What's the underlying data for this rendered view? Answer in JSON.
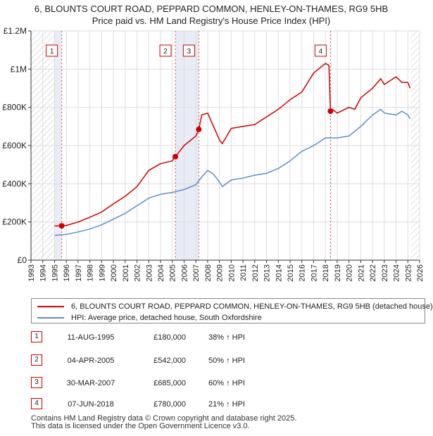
{
  "title_line1": "6, BLOUNTS COURT ROAD, PEPPARD COMMON, HENLEY-ON-THAMES, RG9 5HB",
  "title_line2": "Price paid vs. HM Land Registry's House Price Index (HPI)",
  "colors": {
    "property": "#cc0000",
    "hpi": "#5b8fc7",
    "shade": "#e8ecf6",
    "grid": "#dddddd",
    "hatch": "#bbbbbb"
  },
  "legend": {
    "property_label": "6, BLOUNTS COURT ROAD, PEPPARD COMMON, HENLEY-ON-THAMES, RG9 5HB (detached house)",
    "hpi_label": "HPI: Average price, detached house, South Oxfordshire"
  },
  "transactions": [
    {
      "num": "1",
      "date": "11-AUG-1995",
      "price": "£180,000",
      "hpi": "38% ↑ HPI"
    },
    {
      "num": "2",
      "date": "04-APR-2005",
      "price": "£542,000",
      "hpi": "50% ↑ HPI"
    },
    {
      "num": "3",
      "date": "30-MAR-2007",
      "price": "£685,000",
      "hpi": "60% ↑ HPI"
    },
    {
      "num": "4",
      "date": "07-JUN-2018",
      "price": "£780,000",
      "hpi": "21% ↑ HPI"
    }
  ],
  "footer": {
    "line1": "Contains HM Land Registry data © Crown copyright and database right 2025.",
    "line2": "This data is licensed under the Open Government Licence v3.0."
  },
  "chart_data": {
    "type": "line",
    "xlim": [
      1993,
      2026
    ],
    "ylim": [
      0,
      1200000
    ],
    "y_ticks": [
      0,
      200000,
      400000,
      600000,
      800000,
      1000000,
      1200000
    ],
    "y_tick_labels": [
      "£0",
      "£200K",
      "£400K",
      "£600K",
      "£800K",
      "£1M",
      "£1.2M"
    ],
    "x_ticks": [
      1993,
      1994,
      1995,
      1996,
      1997,
      1998,
      1999,
      2000,
      2001,
      2002,
      2003,
      2004,
      2005,
      2006,
      2007,
      2008,
      2009,
      2010,
      2011,
      2012,
      2013,
      2014,
      2015,
      2016,
      2017,
      2018,
      2019,
      2020,
      2021,
      2022,
      2023,
      2024,
      2025,
      2026
    ],
    "hatched_ranges": [
      [
        1993,
        1995.0
      ],
      [
        2025.25,
        2026
      ]
    ],
    "shaded_ranges": [
      [
        1995.0,
        1995.61
      ],
      [
        2005.26,
        2007.25
      ],
      [
        2018.43,
        2018.5
      ]
    ],
    "series": [
      {
        "name": "6, BLOUNTS COURT ROAD, PEPPARD COMMON, HENLEY-ON-THAMES, RG9 5HB (detached house)",
        "x": [
          1995.0,
          1995.61,
          1996.0,
          1997.0,
          1998.0,
          1999.0,
          2000.0,
          2001.0,
          2002.0,
          2003.0,
          2004.0,
          2005.0,
          2005.26,
          2006.0,
          2007.0,
          2007.25,
          2007.5,
          2008.0,
          2008.5,
          2009.0,
          2009.25,
          2010.0,
          2011.0,
          2012.0,
          2013.0,
          2014.0,
          2015.0,
          2016.0,
          2017.0,
          2018.0,
          2018.3,
          2018.43,
          2018.6,
          2019.0,
          2020.0,
          2020.5,
          2021.0,
          2022.0,
          2022.7,
          2023.0,
          2024.0,
          2024.5,
          2025.0,
          2025.2
        ],
        "y": [
          180000,
          180000,
          182000,
          200000,
          225000,
          252000,
          295000,
          335000,
          385000,
          470000,
          505000,
          520000,
          542000,
          600000,
          650000,
          685000,
          760000,
          770000,
          700000,
          630000,
          610000,
          690000,
          700000,
          710000,
          750000,
          790000,
          840000,
          880000,
          980000,
          1030000,
          1020000,
          780000,
          790000,
          770000,
          800000,
          790000,
          850000,
          900000,
          950000,
          920000,
          960000,
          930000,
          930000,
          900000
        ]
      },
      {
        "name": "HPI: Average price, detached house, South Oxfordshire",
        "x": [
          1995.0,
          1996.0,
          1997.0,
          1998.0,
          1999.0,
          2000.0,
          2001.0,
          2002.0,
          2003.0,
          2004.0,
          2005.0,
          2006.0,
          2007.0,
          2007.5,
          2008.0,
          2008.5,
          2009.0,
          2009.25,
          2010.0,
          2011.0,
          2012.0,
          2013.0,
          2014.0,
          2015.0,
          2016.0,
          2017.0,
          2018.0,
          2019.0,
          2020.0,
          2021.0,
          2022.0,
          2022.7,
          2023.0,
          2024.0,
          2024.5,
          2025.0,
          2025.2
        ],
        "y": [
          130000,
          135000,
          148000,
          163000,
          185000,
          215000,
          245000,
          285000,
          325000,
          345000,
          355000,
          370000,
          395000,
          435000,
          470000,
          450000,
          410000,
          385000,
          420000,
          430000,
          445000,
          455000,
          480000,
          520000,
          570000,
          600000,
          640000,
          640000,
          650000,
          700000,
          760000,
          790000,
          770000,
          760000,
          780000,
          760000,
          740000
        ]
      }
    ],
    "markers": [
      {
        "label": "1",
        "x": 1995.61,
        "y": 180000
      },
      {
        "label": "2",
        "x": 2005.26,
        "y": 542000
      },
      {
        "label": "3",
        "x": 2007.25,
        "y": 685000
      },
      {
        "label": "4",
        "x": 2018.43,
        "y": 780000
      }
    ]
  }
}
